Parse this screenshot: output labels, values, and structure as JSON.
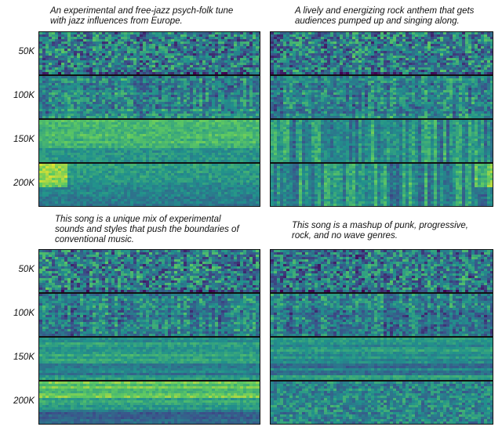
{
  "chart_data": {
    "type": "heatmap",
    "description": "2x2 grid of spectrogram heatmap columns, each with four rows labeled by training step",
    "row_labels": [
      "50K",
      "100K",
      "150K",
      "200K"
    ],
    "colormap": [
      "#440154",
      "#3b528b",
      "#21918c",
      "#5ec962",
      "#fde725"
    ],
    "grids": [
      {
        "caption": "An experimental and free-jazz psych-folk tune\nwith jazz influences from Europe.",
        "rows": [
          {
            "label": "50K",
            "mean_intensity": 0.42,
            "texture": "noisy"
          },
          {
            "label": "100K",
            "mean_intensity": 0.45,
            "texture": "banded"
          },
          {
            "label": "150K",
            "mean_intensity": 0.62,
            "texture": "smooth"
          },
          {
            "label": "200K",
            "mean_intensity": 0.58,
            "texture": "smooth-bright-left"
          }
        ]
      },
      {
        "caption": "A lively and energizing rock anthem that gets\naudiences pumped up and singing along.",
        "rows": [
          {
            "label": "50K",
            "mean_intensity": 0.42,
            "texture": "noisy"
          },
          {
            "label": "100K",
            "mean_intensity": 0.44,
            "texture": "banded"
          },
          {
            "label": "150K",
            "mean_intensity": 0.5,
            "texture": "vertical-stripes"
          },
          {
            "label": "200K",
            "mean_intensity": 0.5,
            "texture": "vertical-stripes-bright-right"
          }
        ]
      },
      {
        "caption": "This song is a unique mix of experimental\nsounds and styles that push the boundaries of\nconventional music.",
        "rows": [
          {
            "label": "50K",
            "mean_intensity": 0.42,
            "texture": "noisy"
          },
          {
            "label": "100K",
            "mean_intensity": 0.44,
            "texture": "banded"
          },
          {
            "label": "150K",
            "mean_intensity": 0.55,
            "texture": "horizontal-bands"
          },
          {
            "label": "200K",
            "mean_intensity": 0.55,
            "texture": "horizontal-bands-dark-bottom"
          }
        ]
      },
      {
        "caption": "This song is a mashup of punk, progressive,\nrock, and no wave genres.",
        "rows": [
          {
            "label": "50K",
            "mean_intensity": 0.4,
            "texture": "noisy"
          },
          {
            "label": "100K",
            "mean_intensity": 0.42,
            "texture": "banded"
          },
          {
            "label": "150K",
            "mean_intensity": 0.52,
            "texture": "horizontal-bands"
          },
          {
            "label": "200K",
            "mean_intensity": 0.46,
            "texture": "noisy-fine"
          }
        ]
      }
    ]
  }
}
